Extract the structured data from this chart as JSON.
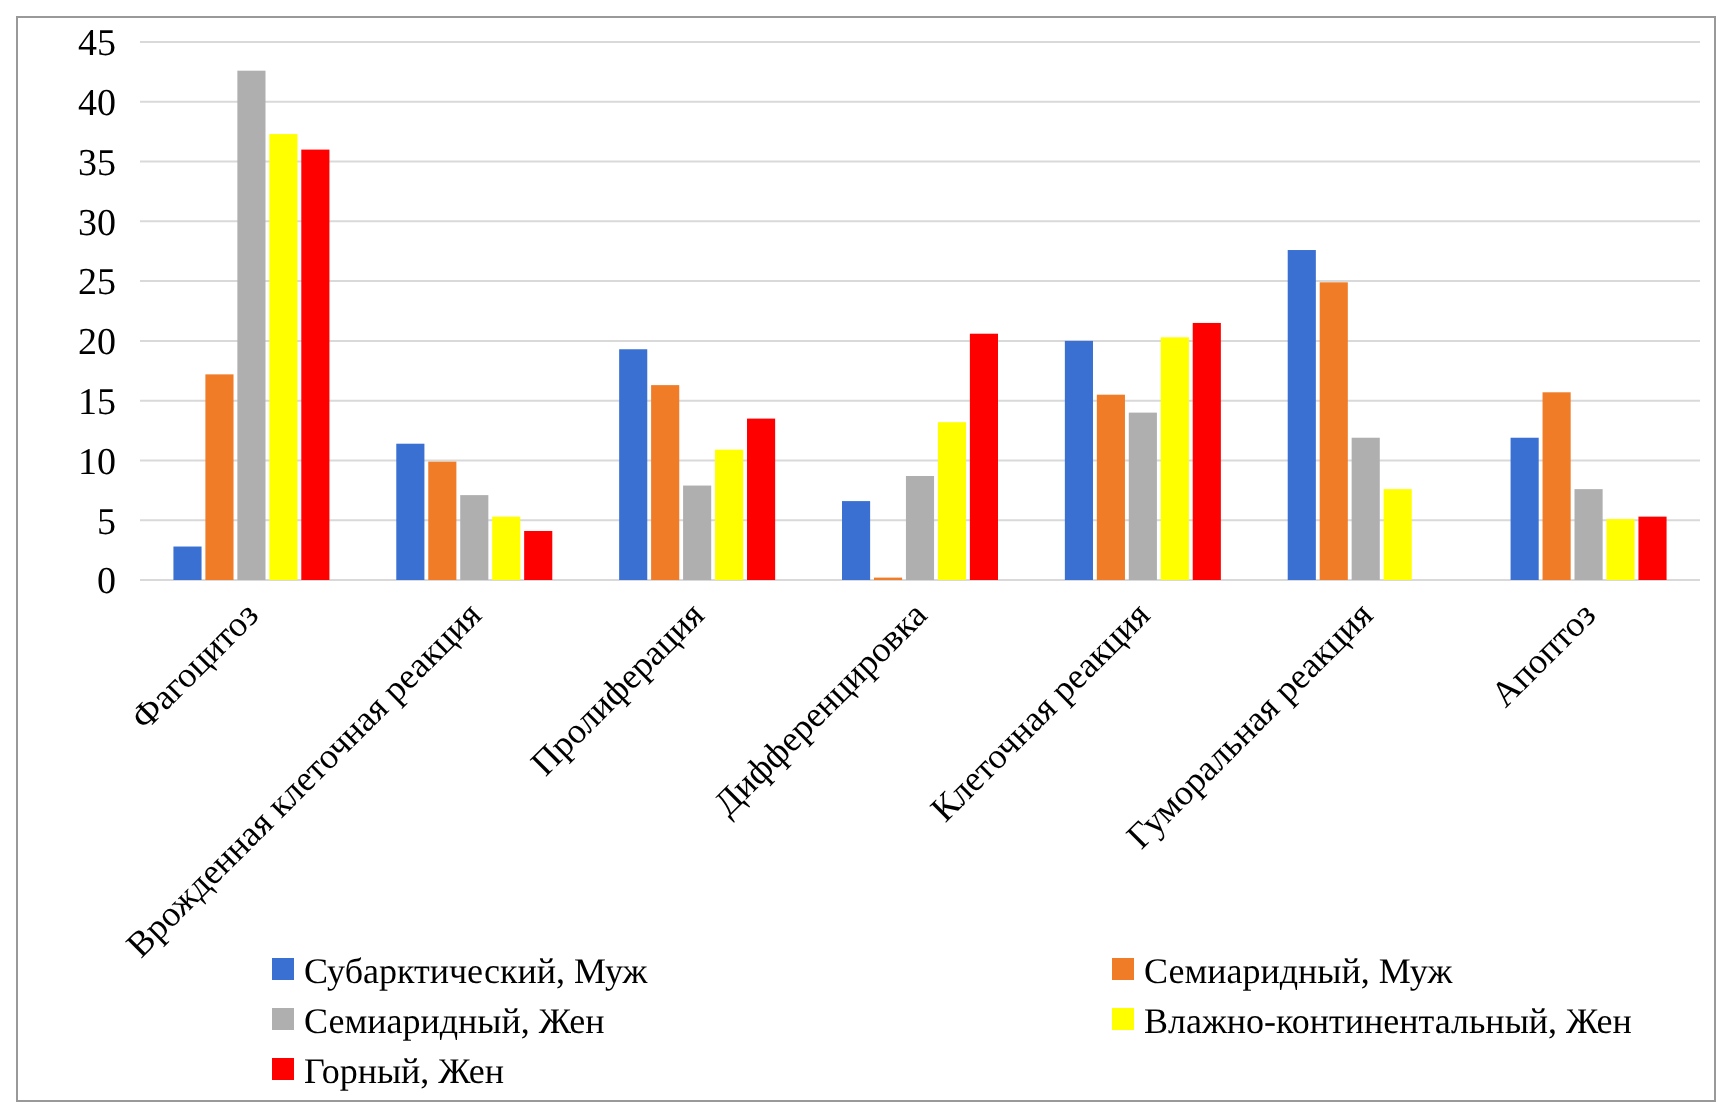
{
  "chart_data": {
    "type": "bar",
    "categories": [
      "Фагоцитоз",
      "Врожденная клеточная реакция",
      "Пролиферация",
      "Дифференцировка",
      "Клеточная реакция",
      "Гуморальная реакция",
      "Апоптоз"
    ],
    "series": [
      {
        "name": "Субарктический, Муж",
        "color": "#3a70d2",
        "values": [
          2.8,
          11.4,
          19.3,
          6.6,
          20.0,
          27.6,
          11.9
        ]
      },
      {
        "name": "Семиаридный, Муж",
        "color": "#f07c28",
        "values": [
          17.2,
          9.9,
          16.3,
          0.2,
          15.5,
          24.9,
          15.7
        ]
      },
      {
        "name": "Семиаридный, Жен",
        "color": "#afafaf",
        "values": [
          42.6,
          7.1,
          7.9,
          8.7,
          14.0,
          11.9,
          7.6
        ]
      },
      {
        "name": "Влажно-континентальный, Жен",
        "color": "#ffff00",
        "values": [
          37.3,
          5.3,
          10.9,
          13.2,
          20.3,
          7.6,
          5.1
        ]
      },
      {
        "name": "Горный, Жен",
        "color": "#ff0000",
        "values": [
          36.0,
          4.1,
          13.5,
          20.6,
          21.5,
          null,
          5.3
        ]
      }
    ],
    "ylim": [
      0,
      45
    ],
    "yticks": [
      0,
      5,
      10,
      15,
      20,
      25,
      30,
      35,
      40,
      45
    ],
    "grid": "y",
    "legend": "bottom"
  }
}
